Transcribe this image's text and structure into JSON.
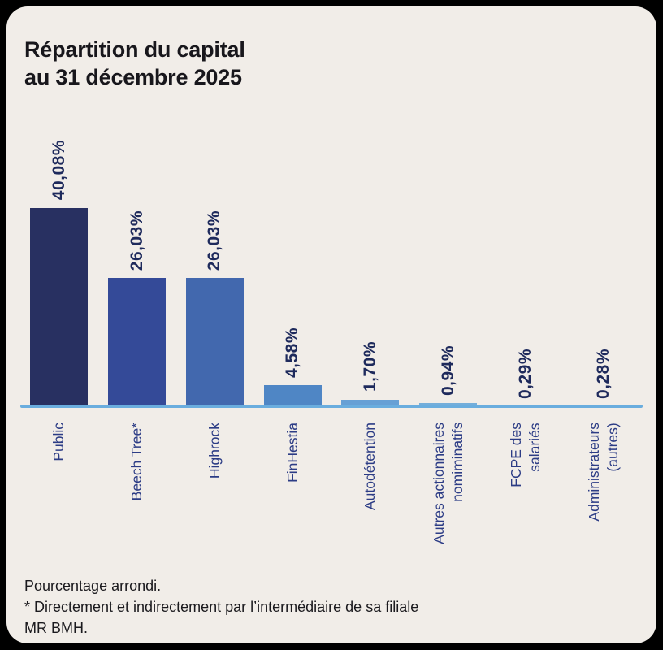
{
  "title": {
    "line1": "Répartition du capital",
    "line2": "au 31 décembre 2025"
  },
  "chart_data": {
    "type": "bar",
    "orientation": "vertical",
    "title": "Répartition du capital au 31 décembre 2025",
    "categories": [
      "Public",
      "Beech Tree*",
      "Highrock",
      "FinHestia",
      "Autodétention",
      "Autres actionnaires\nnomiminatifs",
      "FCPE des\nsalariés",
      "Administrateurs\n(autres)"
    ],
    "values": [
      40.08,
      26.03,
      26.03,
      4.58,
      1.7,
      0.94,
      0.29,
      0.28
    ],
    "value_labels": [
      "40,08%",
      "26,03%",
      "26,03%",
      "4,58%",
      "1,70%",
      "0,94%",
      "0,29%",
      "0,28%"
    ],
    "bar_colors": [
      "#283061",
      "#344a98",
      "#4268ae",
      "#4f86c5",
      "#67a0d5",
      "#74aeda",
      "#7db6e0",
      "#86bee5"
    ],
    "axis_color": "#6aadde",
    "label_color": "#1e2a5c",
    "category_color": "#2c3c85",
    "ylim": [
      0,
      45
    ],
    "grid": false,
    "legend": "none"
  },
  "footnotes": {
    "line1": "Pourcentage arrondi.",
    "line2": "* Directement et indirectement par l’intermédiaire de sa filiale",
    "line3": "MR BMH."
  }
}
